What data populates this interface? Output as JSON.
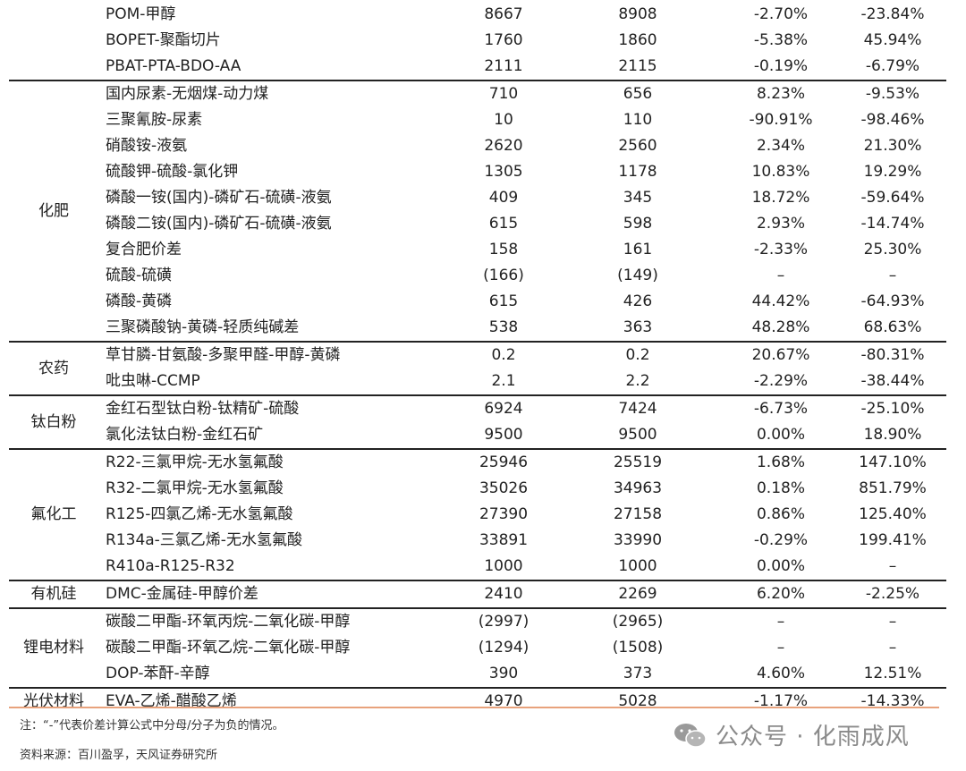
{
  "rows": [
    {
      "cat": "",
      "name": "POM-甲醇",
      "v1": "8667",
      "v2": "8908",
      "c1": "-2.70%",
      "c2": "-23.84%",
      "start": false
    },
    {
      "cat": "",
      "name": "BOPET-聚酯切片",
      "v1": "1760",
      "v2": "1860",
      "c1": "-5.38%",
      "c2": "45.94%",
      "start": false
    },
    {
      "cat": "",
      "name": "PBAT-PTA-BDO-AA",
      "v1": "2111",
      "v2": "2115",
      "c1": "-0.19%",
      "c2": "-6.79%",
      "start": false
    },
    {
      "cat": "化肥",
      "span": 10,
      "name": "国内尿素-无烟煤-动力煤",
      "v1": "710",
      "v2": "656",
      "c1": "8.23%",
      "c2": "-9.53%",
      "start": true
    },
    {
      "name": "三聚氰胺-尿素",
      "v1": "10",
      "v2": "110",
      "c1": "-90.91%",
      "c2": "-98.46%"
    },
    {
      "name": "硝酸铵-液氨",
      "v1": "2620",
      "v2": "2560",
      "c1": "2.34%",
      "c2": "21.30%"
    },
    {
      "name": "硫酸钾-硫酸-氯化钾",
      "v1": "1305",
      "v2": "1178",
      "c1": "10.83%",
      "c2": "19.29%"
    },
    {
      "name": "磷酸一铵(国内)-磷矿石-硫磺-液氨",
      "v1": "409",
      "v2": "345",
      "c1": "18.72%",
      "c2": "-59.64%"
    },
    {
      "name": "磷酸二铵(国内)-磷矿石-硫磺-液氨",
      "v1": "615",
      "v2": "598",
      "c1": "2.93%",
      "c2": "-14.74%"
    },
    {
      "name": "复合肥价差",
      "v1": "158",
      "v2": "161",
      "c1": "-2.33%",
      "c2": "25.30%"
    },
    {
      "name": "硫酸-硫磺",
      "v1": "(166)",
      "v2": "(149)",
      "c1": "–",
      "c2": "–"
    },
    {
      "name": "磷酸-黄磷",
      "v1": "615",
      "v2": "426",
      "c1": "44.42%",
      "c2": "-64.93%"
    },
    {
      "name": "三聚磷酸钠-黄磷-轻质纯碱差",
      "v1": "538",
      "v2": "363",
      "c1": "48.28%",
      "c2": "68.63%"
    },
    {
      "cat": "农药",
      "span": 2,
      "name": "草甘膦-甘氨酸-多聚甲醛-甲醇-黄磷",
      "v1": "0.2",
      "v2": "0.2",
      "c1": "20.67%",
      "c2": "-80.31%",
      "start": true
    },
    {
      "name": "吡虫啉-CCMP",
      "v1": "2.1",
      "v2": "2.2",
      "c1": "-2.29%",
      "c2": "-38.44%"
    },
    {
      "cat": "钛白粉",
      "span": 2,
      "name": "金红石型钛白粉-钛精矿-硫酸",
      "v1": "6924",
      "v2": "7424",
      "c1": "-6.73%",
      "c2": "-25.10%",
      "start": true
    },
    {
      "name": "氯化法钛白粉-金红石矿",
      "v1": "9500",
      "v2": "9500",
      "c1": "0.00%",
      "c2": "18.90%"
    },
    {
      "cat": "氟化工",
      "span": 5,
      "name": "R22-三氯甲烷-无水氢氟酸",
      "v1": "25946",
      "v2": "25519",
      "c1": "1.68%",
      "c2": "147.10%",
      "start": true
    },
    {
      "name": "R32-二氯甲烷-无水氢氟酸",
      "v1": "35026",
      "v2": "34963",
      "c1": "0.18%",
      "c2": "851.79%"
    },
    {
      "name": "R125-四氯乙烯-无水氢氟酸",
      "v1": "27390",
      "v2": "27158",
      "c1": "0.86%",
      "c2": "125.40%"
    },
    {
      "name": "R134a-三氯乙烯-无水氢氟酸",
      "v1": "33891",
      "v2": "33990",
      "c1": "-0.29%",
      "c2": "199.41%"
    },
    {
      "name": "R410a-R125-R32",
      "v1": "1000",
      "v2": "1000",
      "c1": "0.00%",
      "c2": "–"
    },
    {
      "cat": "有机硅",
      "span": 1,
      "name": "DMC-金属硅-甲醇价差",
      "v1": "2410",
      "v2": "2269",
      "c1": "6.20%",
      "c2": "-2.25%",
      "start": true
    },
    {
      "cat": "锂电材料",
      "span": 3,
      "name": "碳酸二甲酯-环氧丙烷-二氧化碳-甲醇",
      "v1": "(2997)",
      "v2": "(2965)",
      "c1": "–",
      "c2": "–",
      "start": true
    },
    {
      "name": "碳酸二甲酯-环氧乙烷-二氧化碳-甲醇",
      "v1": "(1294)",
      "v2": "(1508)",
      "c1": "–",
      "c2": "–"
    },
    {
      "name": "DOP-苯酐-辛醇",
      "v1": "390",
      "v2": "373",
      "c1": "4.60%",
      "c2": "12.51%"
    },
    {
      "cat": "光伏材料",
      "span": 1,
      "name": "EVA-乙烯-醋酸乙烯",
      "v1": "4970",
      "v2": "5028",
      "c1": "-1.17%",
      "c2": "-14.33%",
      "start": true
    }
  ],
  "note": "注：“-”代表价差计算公式中分母/分子为负的情况。",
  "source": "资料来源：百川盈孚，天风证券研究所",
  "watermark": "公众号 · 化雨成风",
  "colors": {
    "rule": "#222222",
    "accent_rule": "#e8a27c",
    "watermark": "#8a8a8a"
  }
}
